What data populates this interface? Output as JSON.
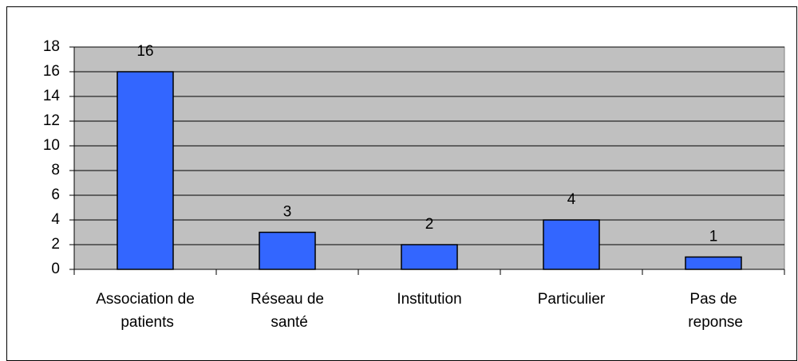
{
  "chart_data": {
    "type": "bar",
    "categories": [
      "Association de patients",
      "Réseau de santé",
      "Institution",
      "Particulier",
      "Pas de reponse"
    ],
    "values": [
      16,
      3,
      2,
      4,
      1
    ],
    "color": "#3366ff",
    "ylim": [
      0,
      18
    ],
    "yticks": [
      0,
      2,
      4,
      6,
      8,
      10,
      12,
      14,
      16,
      18
    ],
    "grid": true
  }
}
